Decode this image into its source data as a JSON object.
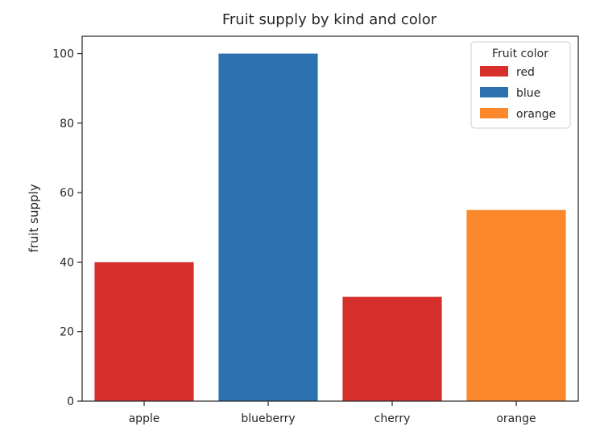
{
  "chart_data": {
    "type": "bar",
    "title": "Fruit supply by kind and color",
    "xlabel": "",
    "ylabel": "fruit supply",
    "categories": [
      "apple",
      "blueberry",
      "cherry",
      "orange"
    ],
    "values": [
      40,
      100,
      30,
      55
    ],
    "bar_colors": [
      "#d62f2c",
      "#2c72b0",
      "#d62f2c",
      "#fc882b"
    ],
    "ylim": [
      0,
      105
    ],
    "yticks": [
      0,
      20,
      40,
      60,
      80,
      100
    ],
    "grid": false,
    "legend": {
      "title": "Fruit color",
      "placement": "top-right",
      "entries": [
        {
          "label": "red",
          "color": "#d62f2c"
        },
        {
          "label": "blue",
          "color": "#2c72b0"
        },
        {
          "label": "orange",
          "color": "#fc882b"
        }
      ]
    }
  }
}
